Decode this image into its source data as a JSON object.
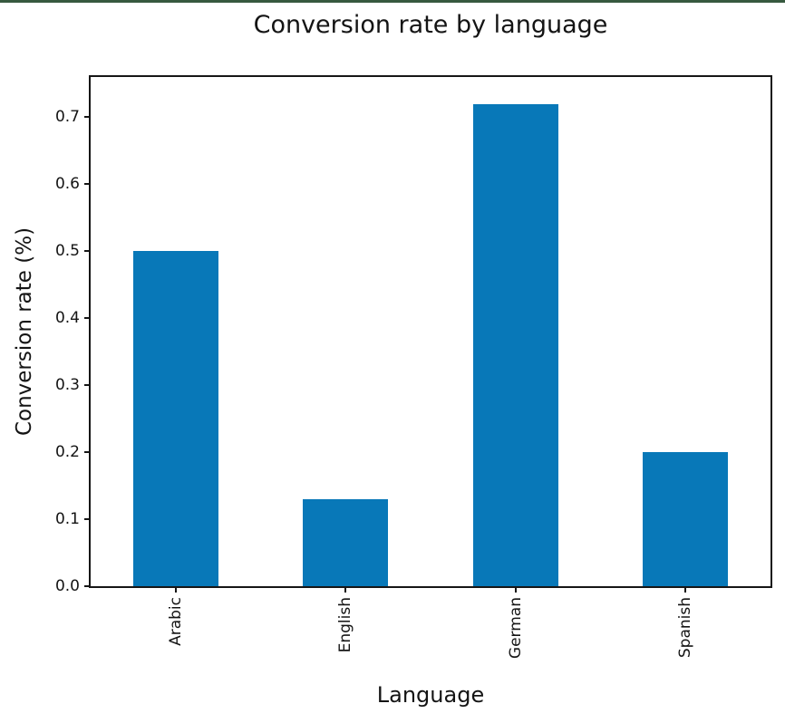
{
  "window": {
    "top_border_color": "#37593f"
  },
  "chart_data": {
    "type": "bar",
    "title": "Conversion rate by language",
    "xlabel": "Language",
    "ylabel": "Conversion rate (%)",
    "categories": [
      "Arabic",
      "English",
      "German",
      "Spanish"
    ],
    "values": [
      0.5,
      0.13,
      0.72,
      0.2
    ],
    "ylim": [
      0,
      0.76
    ],
    "ytick_labels": [
      "0.0",
      "0.1",
      "0.2",
      "0.3",
      "0.4",
      "0.5",
      "0.6",
      "0.7"
    ],
    "xtick_rotation_deg": 90,
    "bar_color": "#0878b8",
    "bar_width_fraction": 0.5,
    "grid": false,
    "legend": "none",
    "text_color": "#141414",
    "plot_background": "#ffffff"
  }
}
